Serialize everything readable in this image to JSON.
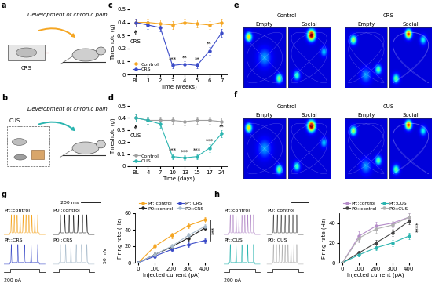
{
  "panel_labels": [
    "a",
    "b",
    "c",
    "d",
    "e",
    "f",
    "g",
    "h"
  ],
  "schematics": [
    {
      "label": "CRS",
      "caption": "Development of chronic pain"
    },
    {
      "label": "CUS",
      "caption": "Development of chronic pain"
    }
  ],
  "heatmaps": [
    {
      "groups": [
        "Control",
        "CRS"
      ],
      "conditions": [
        "Empty",
        "Social"
      ]
    },
    {
      "groups": [
        "Control",
        "CUS"
      ],
      "conditions": [
        "Empty",
        "Social"
      ]
    }
  ],
  "traces": [
    {
      "labels": [
        "PF::control",
        "PO::control",
        "PF::CRS",
        "PO::CRS"
      ],
      "time_scale": "200 ms",
      "voltage_scale": "50 mV",
      "current": "200 pA"
    },
    {
      "labels": [
        "PF::control",
        "PO::control",
        "PF::CUS",
        "PO::CUS"
      ],
      "current": "200 pA"
    }
  ],
  "chart_data": [
    {
      "type": "line",
      "xlabel": "Time (weeks)",
      "ylabel": "Threshold (g)",
      "marker": "o",
      "categories": [
        "BL",
        "1",
        "2",
        "3",
        "4",
        "5",
        "6",
        "7"
      ],
      "ylim": [
        0,
        0.5
      ],
      "yticks": [
        0,
        0.1,
        0.2,
        0.3,
        0.4,
        0.5
      ],
      "legend": "lower left",
      "series": [
        {
          "name": "Control",
          "color": "#f5a623",
          "values": [
            0.4,
            0.4,
            0.39,
            0.38,
            0.4,
            0.39,
            0.38,
            0.4
          ],
          "errors": [
            0.03,
            0.03,
            0.03,
            0.03,
            0.03,
            0.03,
            0.03,
            0.03
          ]
        },
        {
          "name": "CRS",
          "color": "#3b4bc8",
          "values": [
            0.4,
            0.38,
            0.36,
            0.07,
            0.08,
            0.07,
            0.18,
            0.32
          ],
          "errors": [
            0.03,
            0.03,
            0.03,
            0.02,
            0.02,
            0.02,
            0.03,
            0.03
          ]
        }
      ],
      "annotations": [
        {
          "category": "3",
          "text": "***"
        },
        {
          "category": "4",
          "text": "**"
        },
        {
          "category": "5",
          "text": "**"
        },
        {
          "category": "6",
          "text": "**"
        }
      ],
      "note": {
        "category": "BL",
        "text": "CRS"
      }
    },
    {
      "type": "line",
      "xlabel": "Time (days)",
      "ylabel": "Threshold (g)",
      "marker": "o",
      "categories": [
        "BL",
        "4",
        "7",
        "10",
        "13",
        "15",
        "17",
        "24"
      ],
      "ylim": [
        0,
        0.5
      ],
      "yticks": [
        0,
        0.1,
        0.2,
        0.3,
        0.4,
        0.5
      ],
      "legend": "lower left",
      "series": [
        {
          "name": "Control",
          "color": "#9e9e9e",
          "values": [
            0.4,
            0.38,
            0.38,
            0.38,
            0.37,
            0.38,
            0.38,
            0.37
          ],
          "errors": [
            0.03,
            0.03,
            0.03,
            0.03,
            0.03,
            0.03,
            0.03,
            0.03
          ]
        },
        {
          "name": "CUS",
          "color": "#2bb5b0",
          "values": [
            0.4,
            0.38,
            0.35,
            0.08,
            0.07,
            0.08,
            0.15,
            0.27
          ],
          "errors": [
            0.03,
            0.03,
            0.03,
            0.02,
            0.02,
            0.02,
            0.03,
            0.03
          ]
        }
      ],
      "annotations": [
        {
          "category": "10",
          "text": "***"
        },
        {
          "category": "13",
          "text": "***"
        },
        {
          "category": "15",
          "text": "***"
        },
        {
          "category": "17",
          "text": "***"
        },
        {
          "category": "24",
          "text": "**"
        }
      ],
      "note": {
        "category": "BL",
        "text": "CUS"
      }
    },
    {
      "type": "line",
      "xlabel": "Injected current (pA)",
      "ylabel": "Firing rate (Hz)",
      "marker": "o",
      "x": [
        0,
        100,
        200,
        300,
        400
      ],
      "xlim": [
        -20,
        420
      ],
      "xticks": [
        0,
        100,
        200,
        300,
        400
      ],
      "ylim": [
        0,
        60
      ],
      "yticks": [
        0,
        20,
        40,
        60
      ],
      "legend": "upper center",
      "series": [
        {
          "name": "PF::control",
          "color": "#f5a623",
          "values": [
            0,
            20,
            33,
            45,
            52
          ],
          "errors": [
            0,
            3,
            3,
            3,
            3
          ]
        },
        {
          "name": "PO::control",
          "color": "#222222",
          "values": [
            0,
            10,
            19,
            30,
            42
          ],
          "errors": [
            0,
            2,
            3,
            3,
            3
          ]
        },
        {
          "name": "PF::CRS",
          "color": "#3b4bc8",
          "values": [
            0,
            8,
            16,
            22,
            27
          ],
          "errors": [
            0,
            2,
            2,
            3,
            3
          ]
        },
        {
          "name": "PO::CRS",
          "color": "#a9bccc",
          "values": [
            0,
            10,
            20,
            33,
            44
          ],
          "errors": [
            0,
            2,
            3,
            3,
            3
          ]
        }
      ],
      "significance": "***"
    },
    {
      "type": "line",
      "xlabel": "Injected current (pA)",
      "ylabel": "Firing rate (Hz)",
      "marker": "o",
      "x": [
        0,
        100,
        200,
        300,
        400
      ],
      "xlim": [
        -20,
        420
      ],
      "xticks": [
        0,
        100,
        200,
        300,
        400
      ],
      "ylim": [
        0,
        50
      ],
      "yticks": [
        0,
        20,
        40
      ],
      "legend": "upper center",
      "series": [
        {
          "name": "PF::control",
          "color": "#b58cc9",
          "values": [
            0,
            27,
            37,
            40,
            46
          ],
          "errors": [
            0,
            5,
            4,
            4,
            4
          ]
        },
        {
          "name": "PO::control",
          "color": "#444444",
          "values": [
            0,
            10,
            20,
            30,
            42
          ],
          "errors": [
            0,
            2,
            3,
            3,
            3
          ]
        },
        {
          "name": "PF::CUS",
          "color": "#2bb5b0",
          "values": [
            0,
            8,
            15,
            20,
            27
          ],
          "errors": [
            0,
            2,
            2,
            3,
            3
          ]
        },
        {
          "name": "PO::CUS",
          "color": "#b0b0b0",
          "values": [
            0,
            25,
            34,
            38,
            46
          ],
          "errors": [
            0,
            4,
            4,
            4,
            4
          ]
        }
      ],
      "significance": "****"
    }
  ]
}
